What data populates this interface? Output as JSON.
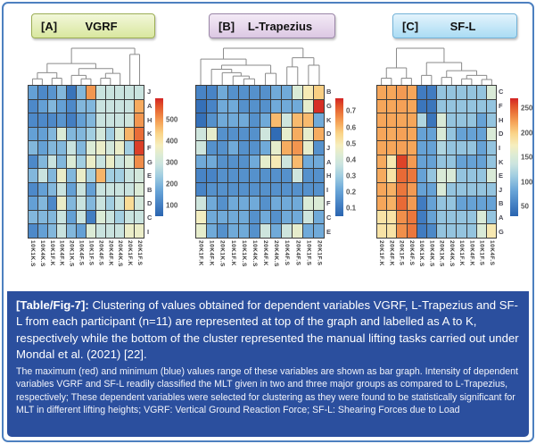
{
  "figure": {
    "caption_lead": "[Table/Fig-7]:",
    "caption_main": "Clustering of values obtained for dependent variables VGRF, L-Trapezius and SF-L from each participant (n=11) are represented at top of the graph and labelled as A to K, respectively while the bottom of the cluster represented the manual lifting tasks carried out under Mondal et al. (2021) [22].",
    "caption_note": "The maximum (red) and minimum (blue) values range of these variables are shown as bar graph. Intensity of dependent variables VGRF and SF-L readily classified the MLT given in two and three major groups as compared to L-Trapezius, respectively; These dependent variables were selected for clustering as they were found to be statistically significant for MLT in different lifting heights; VGRF: Vertical Ground Reaction Force; SF-L: Shearing Forces due to Load",
    "border_color": "#4d80c0",
    "caption_bg": "#2b4f9e",
    "colormap_stops": [
      [
        "0.00",
        "#2a64af"
      ],
      [
        "0.10",
        "#4581c4"
      ],
      [
        "0.22",
        "#6aa6d8"
      ],
      [
        "0.34",
        "#a0cde1"
      ],
      [
        "0.44",
        "#cbe4df"
      ],
      [
        "0.52",
        "#ddecd4"
      ],
      [
        "0.60",
        "#f6eebe"
      ],
      [
        "0.70",
        "#fad589"
      ],
      [
        "0.79",
        "#f6a75b"
      ],
      [
        "0.87",
        "#ec7a3d"
      ],
      [
        "0.94",
        "#e1502a"
      ],
      [
        "1.00",
        "#d32424"
      ]
    ]
  },
  "chart_data": [
    {
      "type": "heatmap",
      "panel_label": "[A]",
      "title": "VGRF",
      "badge_bg_top": "#f2f7d9",
      "badge_bg": "#d9e79f",
      "badge_border": "#9cae55",
      "rows": [
        "J",
        "A",
        "H",
        "K",
        "F",
        "G",
        "E",
        "B",
        "D",
        "C",
        "I"
      ],
      "columns": [
        "10K1K.S",
        "10K4K.S",
        "10K1F.K",
        "10K4F.K",
        "20K1K.S",
        "10K4F.S",
        "10K1F.S",
        "20K4F.S",
        "20K4F.K",
        "20K4K.S",
        "20K1F.K",
        "20K1F.S"
      ],
      "vmin": 50,
      "vmax": 600,
      "legend_labels": [
        "500",
        "400",
        "300",
        "200",
        "100"
      ],
      "legend_values": [
        500,
        400,
        300,
        200,
        100
      ],
      "values": [
        [
          160,
          120,
          140,
          200,
          80,
          200,
          500,
          290,
          290,
          290,
          290,
          290
        ],
        [
          120,
          160,
          200,
          160,
          120,
          200,
          200,
          290,
          290,
          290,
          290,
          480
        ],
        [
          120,
          120,
          120,
          140,
          100,
          160,
          200,
          290,
          290,
          290,
          300,
          500
        ],
        [
          160,
          160,
          200,
          330,
          200,
          200,
          240,
          310,
          240,
          330,
          470,
          540
        ],
        [
          200,
          160,
          200,
          200,
          290,
          200,
          330,
          360,
          310,
          360,
          240,
          580
        ],
        [
          120,
          200,
          290,
          200,
          330,
          240,
          360,
          290,
          360,
          290,
          330,
          510
        ],
        [
          200,
          290,
          200,
          360,
          200,
          360,
          240,
          470,
          240,
          240,
          290,
          310
        ],
        [
          120,
          160,
          200,
          290,
          160,
          290,
          160,
          290,
          290,
          290,
          290,
          330
        ],
        [
          160,
          200,
          120,
          360,
          200,
          290,
          200,
          290,
          240,
          290,
          420,
          310
        ],
        [
          200,
          200,
          200,
          290,
          160,
          290,
          100,
          330,
          290,
          240,
          290,
          290
        ],
        [
          120,
          160,
          200,
          290,
          200,
          160,
          330,
          290,
          290,
          290,
          360,
          360
        ]
      ],
      "dendrogram": {
        "h": 1,
        "c": [
          {
            "h": 0.55,
            "c": [
              {
                "h": 0.28,
                "c": [
                  {
                    "h": 0.1,
                    "c": [
                      0,
                      1
                    ]
                  },
                  {
                    "h": 0.12,
                    "c": [
                      2,
                      3
                    ]
                  }
                ]
              },
              {
                "h": 0.4,
                "c": [
                  {
                    "h": 0.2,
                    "c": [
                      4,
                      {
                        "h": 0.1,
                        "c": [
                          5,
                          6
                        ]
                      }
                    ]
                  },
                  {
                    "h": 0.26,
                    "c": [
                      {
                        "h": 0.12,
                        "c": [
                          7,
                          8
                        ]
                      },
                      9
                    ]
                  }
                ]
              }
            ]
          },
          {
            "h": 0.82,
            "c": [
              10,
              11
            ]
          }
        ]
      }
    },
    {
      "type": "heatmap",
      "panel_label": "[B]",
      "title": "L-Trapezius",
      "badge_bg_top": "#f3eaf6",
      "badge_bg": "#dcc8e3",
      "badge_border": "#9b87a8",
      "rows": [
        "B",
        "G",
        "K",
        "D",
        "J",
        "A",
        "H",
        "I",
        "F",
        "C",
        "E"
      ],
      "columns": [
        "20K1F.K",
        "10K4F.K",
        "20K1K.S",
        "10K1F.K",
        "10K1K.S",
        "10K4K.S",
        "20K4F.K",
        "20K4K.S",
        "10K4F.S",
        "20K4F.S",
        "10K1F.S",
        "20K1F.S"
      ],
      "vmin": 0.05,
      "vmax": 0.78,
      "legend_labels": [
        "0.7",
        "0.6",
        "0.5",
        "0.4",
        "0.3",
        "0.2",
        "0.1"
      ],
      "legend_values": [
        0.7,
        0.6,
        0.5,
        0.4,
        0.3,
        0.2,
        0.1
      ],
      "values": [
        [
          0.13,
          0.13,
          0.22,
          0.16,
          0.16,
          0.16,
          0.16,
          0.22,
          0.22,
          0.42,
          0.5,
          0.57
        ],
        [
          0.08,
          0.13,
          0.22,
          0.22,
          0.16,
          0.16,
          0.16,
          0.22,
          0.22,
          0.22,
          0.45,
          0.77
        ],
        [
          0.08,
          0.16,
          0.22,
          0.22,
          0.22,
          0.16,
          0.22,
          0.6,
          0.38,
          0.6,
          0.6,
          0.22
        ],
        [
          0.38,
          0.45,
          0.16,
          0.16,
          0.16,
          0.16,
          0.38,
          0.07,
          0.45,
          0.62,
          0.45,
          0.62
        ],
        [
          0.38,
          0.16,
          0.16,
          0.22,
          0.16,
          0.16,
          0.22,
          0.45,
          0.62,
          0.65,
          0.45,
          0.16
        ],
        [
          0.22,
          0.22,
          0.16,
          0.16,
          0.16,
          0.22,
          0.45,
          0.5,
          0.38,
          0.6,
          0.22,
          0.22
        ],
        [
          0.13,
          0.13,
          0.16,
          0.16,
          0.16,
          0.16,
          0.16,
          0.16,
          0.16,
          0.38,
          0.16,
          0.16
        ],
        [
          0.13,
          0.16,
          0.16,
          0.16,
          0.16,
          0.16,
          0.16,
          0.16,
          0.16,
          0.16,
          0.16,
          0.16
        ],
        [
          0.38,
          0.22,
          0.16,
          0.22,
          0.22,
          0.22,
          0.16,
          0.22,
          0.22,
          0.22,
          0.42,
          0.42
        ],
        [
          0.48,
          0.22,
          0.22,
          0.22,
          0.22,
          0.16,
          0.22,
          0.16,
          0.22,
          0.22,
          0.38,
          0.22
        ],
        [
          0.45,
          0.22,
          0.16,
          0.22,
          0.22,
          0.16,
          0.38,
          0.22,
          0.38,
          0.45,
          0.22,
          0.22
        ]
      ],
      "dendrogram": {
        "h": 1,
        "c": [
          {
            "h": 0.68,
            "c": [
              0,
              {
                "h": 0.5,
                "c": [
                  {
                    "h": 0.38,
                    "c": [
                      1,
                      {
                        "h": 0.28,
                        "c": [
                          2,
                          {
                            "h": 0.18,
                            "c": [
                              3,
                              {
                                "h": 0.1,
                                "c": [
                                  4,
                                  5
                                ]
                              }
                            ]
                          }
                        ]
                      }
                    ]
                  },
                  {
                    "h": 0.26,
                    "c": [
                      6,
                      7
                    ]
                  }
                ]
              }
            ]
          },
          {
            "h": 0.72,
            "c": [
              {
                "h": 0.45,
                "c": [
                  8,
                  9
                ]
              },
              {
                "h": 0.5,
                "c": [
                  10,
                  11
                ]
              }
            ]
          }
        ]
      }
    },
    {
      "type": "heatmap",
      "panel_label": "[C]",
      "title": "SF-L",
      "badge_bg_top": "#e3f3fc",
      "badge_bg": "#aadcf4",
      "badge_border": "#74b3d8",
      "rows": [
        "C",
        "F",
        "H",
        "D",
        "I",
        "K",
        "E",
        "J",
        "B",
        "A",
        "G"
      ],
      "columns": [
        "20K1F.K",
        "20K4F.K",
        "20K1F.S",
        "20K4F.S",
        "10K1K.S",
        "10K4K.S",
        "20K1K.S",
        "20K4K.S",
        "10K1F.K",
        "10K4F.K",
        "10K1F.S",
        "10K4F.S"
      ],
      "vmin": 30,
      "vmax": 270,
      "legend_labels": [
        "250",
        "200",
        "150",
        "100",
        "50"
      ],
      "legend_values": [
        250,
        200,
        150,
        100,
        50
      ],
      "values": [
        [
          220,
          220,
          225,
          220,
          50,
          50,
          105,
          105,
          105,
          105,
          105,
          150
        ],
        [
          220,
          220,
          222,
          220,
          45,
          45,
          105,
          105,
          105,
          105,
          105,
          105
        ],
        [
          220,
          220,
          220,
          220,
          120,
          45,
          150,
          105,
          105,
          105,
          80,
          105
        ],
        [
          220,
          218,
          222,
          220,
          80,
          80,
          150,
          105,
          80,
          80,
          80,
          150
        ],
        [
          220,
          220,
          222,
          220,
          80,
          80,
          120,
          105,
          105,
          105,
          80,
          105
        ],
        [
          218,
          180,
          260,
          225,
          80,
          80,
          105,
          105,
          80,
          80,
          80,
          105
        ],
        [
          218,
          185,
          245,
          240,
          80,
          105,
          150,
          150,
          105,
          105,
          105,
          150
        ],
        [
          220,
          215,
          240,
          225,
          80,
          80,
          150,
          105,
          105,
          105,
          105,
          105
        ],
        [
          220,
          215,
          245,
          225,
          50,
          80,
          105,
          105,
          80,
          80,
          80,
          80
        ],
        [
          185,
          185,
          230,
          240,
          50,
          80,
          105,
          105,
          105,
          105,
          150,
          105
        ],
        [
          185,
          185,
          230,
          240,
          50,
          60,
          105,
          105,
          105,
          105,
          150,
          180
        ]
      ],
      "dendrogram": {
        "h": 1,
        "c": [
          {
            "h": 0.42,
            "c": [
              {
                "h": 0.12,
                "c": [
                  0,
                  1
                ]
              },
              {
                "h": 0.12,
                "c": [
                  2,
                  3
                ]
              }
            ]
          },
          {
            "h": 0.58,
            "c": [
              {
                "h": 0.2,
                "c": [
                  4,
                  5
                ]
              },
              {
                "h": 0.34,
                "c": [
                  {
                    "h": 0.14,
                    "c": [
                      6,
                      7
                    ]
                  },
                  {
                    "h": 0.2,
                    "c": [
                      {
                        "h": 0.1,
                        "c": [
                          8,
                          9
                        ]
                      },
                      {
                        "h": 0.08,
                        "c": [
                          10,
                          11
                        ]
                      }
                    ]
                  }
                ]
              }
            ]
          }
        ]
      }
    }
  ]
}
